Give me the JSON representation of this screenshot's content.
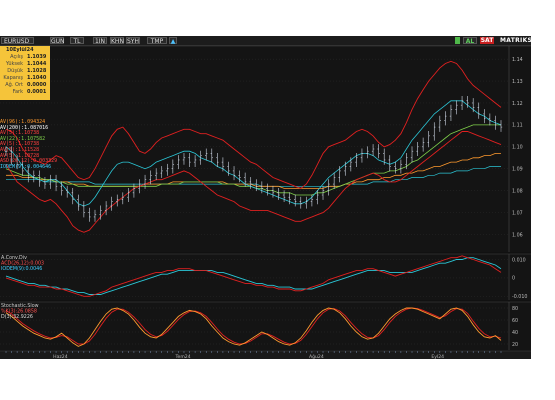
{
  "toolbar": {
    "symbol": "EURUSD",
    "buttons": [
      "GUN",
      "TL",
      "1IN",
      "KHN",
      "SYH",
      "TMP"
    ],
    "right_buttons": [
      "AL",
      "SAT"
    ],
    "brand": "MATRIKS"
  },
  "infobox": {
    "date": "10Eylül24",
    "rows": [
      {
        "label": "Açılış",
        "value": "1.1039"
      },
      {
        "label": "Yüksek",
        "value": "1.1044"
      },
      {
        "label": "Düşük",
        "value": "1.1028"
      },
      {
        "label": "Kapanış",
        "value": "1.1040"
      },
      {
        "label": "Ağ. Ort",
        "value": "0.0000"
      },
      {
        "label": "Fark",
        "value": "0.0001"
      }
    ]
  },
  "legend": [
    {
      "label": "AV(96)",
      "value": ":1.094324",
      "color": "#ff9a2e"
    },
    {
      "label": "AV(200)",
      "value": ":1.087016",
      "color": "#ffffff"
    },
    {
      "label": "AV(5)",
      "value": ":1.10738",
      "color": "#ff4040"
    },
    {
      "label": "AV(22)",
      "value": ":1.107582",
      "color": "#7fd04a"
    },
    {
      "label": "AV(5)",
      "value": ":1.10738",
      "color": "#ff4040"
    },
    {
      "label": "AV(5)",
      "value": ":1.11528",
      "color": "#ff4040"
    },
    {
      "label": "AV(5)",
      "value": ":1.10728",
      "color": "#ff4040"
    },
    {
      "label": "ASD(26,12)",
      "value": ":0.003329",
      "color": "#ff4040"
    },
    {
      "label": "IODEM(9)",
      "value": ":0.004646",
      "color": "#40d0ff"
    }
  ],
  "colors": {
    "candle": "#cfd8e6",
    "bb": "#e02020",
    "bb_mid": "#2bc6d6",
    "ma_long": "#ff9a2e",
    "ma_mid": "#7fd04a",
    "ma_slow": "#2bc6d6",
    "macd": "#e02020",
    "signal": "#2bc6d6",
    "stoch_k": "#ff9a2e",
    "stoch_d": "#e02020"
  },
  "chart_data": [
    {
      "type": "line",
      "name": "price",
      "ylim": [
        1.052,
        1.146
      ],
      "yticks": [
        "1.14",
        "1.13",
        "1.12",
        "1.11",
        "1.10",
        "1.09",
        "1.08",
        "1.07",
        "1.06"
      ],
      "close": [
        1.098,
        1.094,
        1.092,
        1.089,
        1.086,
        1.087,
        1.084,
        1.083,
        1.085,
        1.082,
        1.08,
        1.079,
        1.076,
        1.073,
        1.07,
        1.068,
        1.069,
        1.071,
        1.073,
        1.075,
        1.076,
        1.077,
        1.079,
        1.081,
        1.083,
        1.085,
        1.087,
        1.088,
        1.089,
        1.09,
        1.092,
        1.094,
        1.095,
        1.093,
        1.094,
        1.096,
        1.097,
        1.095,
        1.093,
        1.091,
        1.089,
        1.087,
        1.086,
        1.084,
        1.083,
        1.082,
        1.081,
        1.08,
        1.079,
        1.078,
        1.077,
        1.076,
        1.075,
        1.074,
        1.075,
        1.076,
        1.078,
        1.08,
        1.083,
        1.086,
        1.089,
        1.091,
        1.093,
        1.095,
        1.097,
        1.098,
        1.099,
        1.097,
        1.094,
        1.091,
        1.09,
        1.092,
        1.095,
        1.098,
        1.1,
        1.102,
        1.105,
        1.109,
        1.112,
        1.114,
        1.117,
        1.119,
        1.121,
        1.12,
        1.118,
        1.115,
        1.113,
        1.112,
        1.11,
        1.109
      ],
      "bb_upper": [
        1.108,
        1.107,
        1.104,
        1.099,
        1.096,
        1.094,
        1.093,
        1.092,
        1.094,
        1.096,
        1.095,
        1.092,
        1.089,
        1.086,
        1.085,
        1.086,
        1.09,
        1.095,
        1.1,
        1.105,
        1.108,
        1.109,
        1.106,
        1.102,
        1.098,
        1.097,
        1.099,
        1.102,
        1.104,
        1.105,
        1.106,
        1.107,
        1.108,
        1.108,
        1.107,
        1.106,
        1.106,
        1.105,
        1.104,
        1.103,
        1.101,
        1.099,
        1.097,
        1.095,
        1.093,
        1.092,
        1.09,
        1.088,
        1.086,
        1.085,
        1.084,
        1.083,
        1.082,
        1.081,
        1.083,
        1.087,
        1.092,
        1.097,
        1.1,
        1.101,
        1.102,
        1.103,
        1.105,
        1.107,
        1.108,
        1.107,
        1.105,
        1.102,
        1.1,
        1.101,
        1.103,
        1.106,
        1.111,
        1.117,
        1.122,
        1.126,
        1.13,
        1.133,
        1.136,
        1.138,
        1.139,
        1.138,
        1.135,
        1.131,
        1.128,
        1.126,
        1.124,
        1.122,
        1.12,
        1.118
      ],
      "bb_lower": [
        1.092,
        1.088,
        1.084,
        1.082,
        1.08,
        1.078,
        1.076,
        1.075,
        1.076,
        1.074,
        1.071,
        1.068,
        1.064,
        1.062,
        1.061,
        1.062,
        1.065,
        1.068,
        1.071,
        1.073,
        1.075,
        1.077,
        1.079,
        1.081,
        1.082,
        1.083,
        1.084,
        1.085,
        1.085,
        1.086,
        1.087,
        1.088,
        1.089,
        1.088,
        1.086,
        1.084,
        1.082,
        1.08,
        1.078,
        1.077,
        1.076,
        1.075,
        1.073,
        1.072,
        1.071,
        1.071,
        1.071,
        1.071,
        1.07,
        1.069,
        1.068,
        1.067,
        1.066,
        1.066,
        1.067,
        1.068,
        1.069,
        1.07,
        1.072,
        1.075,
        1.078,
        1.081,
        1.083,
        1.085,
        1.086,
        1.087,
        1.088,
        1.087,
        1.085,
        1.084,
        1.084,
        1.085,
        1.087,
        1.089,
        1.091,
        1.093,
        1.095,
        1.097,
        1.099,
        1.101,
        1.103,
        1.105,
        1.107,
        1.107,
        1.106,
        1.105,
        1.104,
        1.103,
        1.102,
        1.101
      ],
      "bb_mid": [
        1.1,
        1.098,
        1.095,
        1.091,
        1.088,
        1.086,
        1.085,
        1.084,
        1.085,
        1.085,
        1.083,
        1.08,
        1.077,
        1.074,
        1.073,
        1.074,
        1.077,
        1.081,
        1.085,
        1.089,
        1.092,
        1.093,
        1.093,
        1.092,
        1.091,
        1.09,
        1.091,
        1.093,
        1.094,
        1.095,
        1.096,
        1.097,
        1.098,
        1.098,
        1.097,
        1.095,
        1.094,
        1.093,
        1.091,
        1.09,
        1.088,
        1.087,
        1.085,
        1.083,
        1.082,
        1.081,
        1.08,
        1.079,
        1.078,
        1.077,
        1.076,
        1.075,
        1.074,
        1.074,
        1.075,
        1.077,
        1.08,
        1.083,
        1.086,
        1.088,
        1.09,
        1.092,
        1.094,
        1.096,
        1.097,
        1.097,
        1.096,
        1.094,
        1.093,
        1.092,
        1.093,
        1.095,
        1.099,
        1.103,
        1.106,
        1.109,
        1.112,
        1.115,
        1.117,
        1.119,
        1.121,
        1.121,
        1.121,
        1.119,
        1.117,
        1.115,
        1.114,
        1.112,
        1.111,
        1.11
      ],
      "ma_long": [
        1.087,
        1.087,
        1.087,
        1.086,
        1.086,
        1.086,
        1.085,
        1.085,
        1.085,
        1.084,
        1.084,
        1.084,
        1.083,
        1.083,
        1.083,
        1.082,
        1.082,
        1.082,
        1.082,
        1.082,
        1.082,
        1.082,
        1.082,
        1.082,
        1.082,
        1.083,
        1.083,
        1.083,
        1.083,
        1.083,
        1.084,
        1.084,
        1.084,
        1.084,
        1.084,
        1.084,
        1.084,
        1.084,
        1.084,
        1.084,
        1.083,
        1.083,
        1.083,
        1.083,
        1.083,
        1.082,
        1.082,
        1.082,
        1.082,
        1.082,
        1.081,
        1.081,
        1.081,
        1.081,
        1.081,
        1.081,
        1.081,
        1.081,
        1.082,
        1.082,
        1.082,
        1.083,
        1.083,
        1.084,
        1.084,
        1.085,
        1.085,
        1.085,
        1.086,
        1.086,
        1.087,
        1.087,
        1.088,
        1.088,
        1.089,
        1.089,
        1.09,
        1.091,
        1.091,
        1.092,
        1.093,
        1.093,
        1.094,
        1.094,
        1.095,
        1.095,
        1.096,
        1.096,
        1.097,
        1.097
      ],
      "ma_mid": [
        1.09,
        1.089,
        1.088,
        1.087,
        1.087,
        1.086,
        1.086,
        1.085,
        1.085,
        1.084,
        1.084,
        1.083,
        1.083,
        1.082,
        1.082,
        1.082,
        1.082,
        1.082,
        1.082,
        1.082,
        1.082,
        1.082,
        1.082,
        1.082,
        1.082,
        1.082,
        1.082,
        1.082,
        1.083,
        1.083,
        1.083,
        1.083,
        1.084,
        1.084,
        1.084,
        1.084,
        1.084,
        1.084,
        1.084,
        1.083,
        1.083,
        1.083,
        1.082,
        1.082,
        1.082,
        1.081,
        1.081,
        1.08,
        1.08,
        1.079,
        1.079,
        1.079,
        1.078,
        1.078,
        1.078,
        1.078,
        1.079,
        1.079,
        1.08,
        1.081,
        1.082,
        1.083,
        1.084,
        1.085,
        1.086,
        1.087,
        1.088,
        1.088,
        1.088,
        1.089,
        1.089,
        1.09,
        1.091,
        1.093,
        1.094,
        1.096,
        1.098,
        1.1,
        1.102,
        1.104,
        1.106,
        1.107,
        1.108,
        1.109,
        1.11,
        1.11,
        1.11,
        1.11,
        1.11,
        1.11
      ],
      "ma_slow": [
        1.085,
        1.085,
        1.085,
        1.085,
        1.085,
        1.085,
        1.085,
        1.084,
        1.084,
        1.084,
        1.084,
        1.084,
        1.084,
        1.084,
        1.084,
        1.084,
        1.083,
        1.083,
        1.083,
        1.083,
        1.083,
        1.083,
        1.083,
        1.083,
        1.083,
        1.083,
        1.083,
        1.083,
        1.083,
        1.083,
        1.083,
        1.083,
        1.083,
        1.083,
        1.083,
        1.083,
        1.083,
        1.083,
        1.083,
        1.083,
        1.083,
        1.083,
        1.083,
        1.083,
        1.083,
        1.083,
        1.082,
        1.082,
        1.082,
        1.082,
        1.082,
        1.082,
        1.082,
        1.082,
        1.082,
        1.082,
        1.082,
        1.082,
        1.082,
        1.082,
        1.082,
        1.083,
        1.083,
        1.083,
        1.083,
        1.083,
        1.084,
        1.084,
        1.084,
        1.084,
        1.085,
        1.085,
        1.085,
        1.086,
        1.086,
        1.086,
        1.087,
        1.087,
        1.088,
        1.088,
        1.088,
        1.089,
        1.089,
        1.089,
        1.09,
        1.09,
        1.09,
        1.091,
        1.091,
        1.091
      ]
    },
    {
      "type": "line",
      "name": "macd",
      "title": "A.Conv.Div",
      "ylim": [
        -0.012,
        0.013
      ],
      "yticks": [
        "0.010",
        "0",
        "-0.010"
      ],
      "legend": [
        {
          "label": "ACD(26,12)",
          "value": ":0.003"
        },
        {
          "label": "IODEM(9)",
          "value": ":0.0046"
        }
      ],
      "macd": [
        0.0,
        -0.001,
        -0.002,
        -0.003,
        -0.004,
        -0.004,
        -0.005,
        -0.005,
        -0.005,
        -0.006,
        -0.006,
        -0.007,
        -0.008,
        -0.009,
        -0.01,
        -0.01,
        -0.009,
        -0.008,
        -0.007,
        -0.005,
        -0.004,
        -0.003,
        -0.002,
        -0.001,
        0.0,
        0.001,
        0.002,
        0.003,
        0.003,
        0.004,
        0.004,
        0.005,
        0.005,
        0.005,
        0.004,
        0.004,
        0.004,
        0.003,
        0.002,
        0.001,
        0.0,
        -0.001,
        -0.002,
        -0.003,
        -0.003,
        -0.004,
        -0.004,
        -0.005,
        -0.005,
        -0.006,
        -0.006,
        -0.006,
        -0.007,
        -0.007,
        -0.006,
        -0.005,
        -0.004,
        -0.003,
        -0.001,
        0.0,
        0.001,
        0.002,
        0.003,
        0.004,
        0.004,
        0.005,
        0.005,
        0.004,
        0.003,
        0.002,
        0.001,
        0.002,
        0.003,
        0.004,
        0.005,
        0.006,
        0.007,
        0.008,
        0.009,
        0.01,
        0.011,
        0.011,
        0.012,
        0.011,
        0.01,
        0.009,
        0.008,
        0.007,
        0.005,
        0.003
      ],
      "signal": [
        0.001,
        0.0,
        -0.001,
        -0.002,
        -0.003,
        -0.003,
        -0.004,
        -0.004,
        -0.005,
        -0.005,
        -0.006,
        -0.006,
        -0.007,
        -0.008,
        -0.008,
        -0.009,
        -0.009,
        -0.009,
        -0.008,
        -0.007,
        -0.006,
        -0.005,
        -0.004,
        -0.003,
        -0.002,
        -0.001,
        0.0,
        0.001,
        0.002,
        0.002,
        0.003,
        0.004,
        0.004,
        0.004,
        0.004,
        0.004,
        0.004,
        0.004,
        0.003,
        0.003,
        0.002,
        0.001,
        0.0,
        -0.001,
        -0.002,
        -0.003,
        -0.003,
        -0.004,
        -0.004,
        -0.005,
        -0.005,
        -0.005,
        -0.006,
        -0.006,
        -0.006,
        -0.006,
        -0.005,
        -0.004,
        -0.003,
        -0.002,
        -0.001,
        0.0,
        0.001,
        0.002,
        0.003,
        0.004,
        0.004,
        0.004,
        0.004,
        0.003,
        0.003,
        0.003,
        0.003,
        0.003,
        0.004,
        0.005,
        0.006,
        0.007,
        0.008,
        0.008,
        0.009,
        0.01,
        0.01,
        0.011,
        0.011,
        0.01,
        0.009,
        0.008,
        0.007,
        0.005
      ]
    },
    {
      "type": "line",
      "name": "stochastic",
      "title": "Stochastic.Slow",
      "ylim": [
        10,
        90
      ],
      "yticks": [
        "80",
        "60",
        "40",
        "20"
      ],
      "legend": [
        {
          "label": "%K(3)",
          "value": ":26.0858"
        },
        {
          "label": "D(3)",
          "value": ":32.9226"
        }
      ],
      "k": [
        72,
        66,
        58,
        50,
        44,
        38,
        34,
        30,
        28,
        32,
        38,
        30,
        22,
        16,
        20,
        30,
        44,
        58,
        70,
        78,
        80,
        76,
        70,
        60,
        48,
        38,
        32,
        30,
        36,
        46,
        56,
        66,
        72,
        76,
        74,
        70,
        62,
        50,
        40,
        30,
        24,
        20,
        18,
        22,
        28,
        34,
        40,
        36,
        30,
        24,
        20,
        18,
        22,
        30,
        42,
        56,
        68,
        76,
        80,
        78,
        72,
        62,
        50,
        40,
        32,
        28,
        30,
        38,
        50,
        62,
        70,
        76,
        80,
        80,
        78,
        74,
        70,
        66,
        62,
        70,
        78,
        80,
        76,
        66,
        52,
        40,
        32,
        30,
        34,
        26
      ],
      "d": [
        76,
        70,
        62,
        54,
        48,
        42,
        37,
        33,
        30,
        31,
        34,
        32,
        26,
        20,
        20,
        25,
        36,
        50,
        63,
        73,
        78,
        78,
        73,
        65,
        55,
        44,
        36,
        32,
        34,
        41,
        51,
        61,
        69,
        74,
        75,
        72,
        66,
        56,
        45,
        35,
        28,
        23,
        20,
        21,
        25,
        31,
        37,
        37,
        33,
        28,
        23,
        20,
        21,
        26,
        36,
        49,
        62,
        72,
        78,
        79,
        75,
        67,
        56,
        46,
        37,
        31,
        30,
        34,
        44,
        56,
        66,
        73,
        78,
        80,
        79,
        76,
        72,
        68,
        64,
        67,
        74,
        79,
        78,
        71,
        58,
        46,
        37,
        32,
        33,
        30
      ]
    }
  ],
  "xlabels": [
    "Haz24",
    "Tem24",
    "Ağu24",
    "Eyl24"
  ]
}
